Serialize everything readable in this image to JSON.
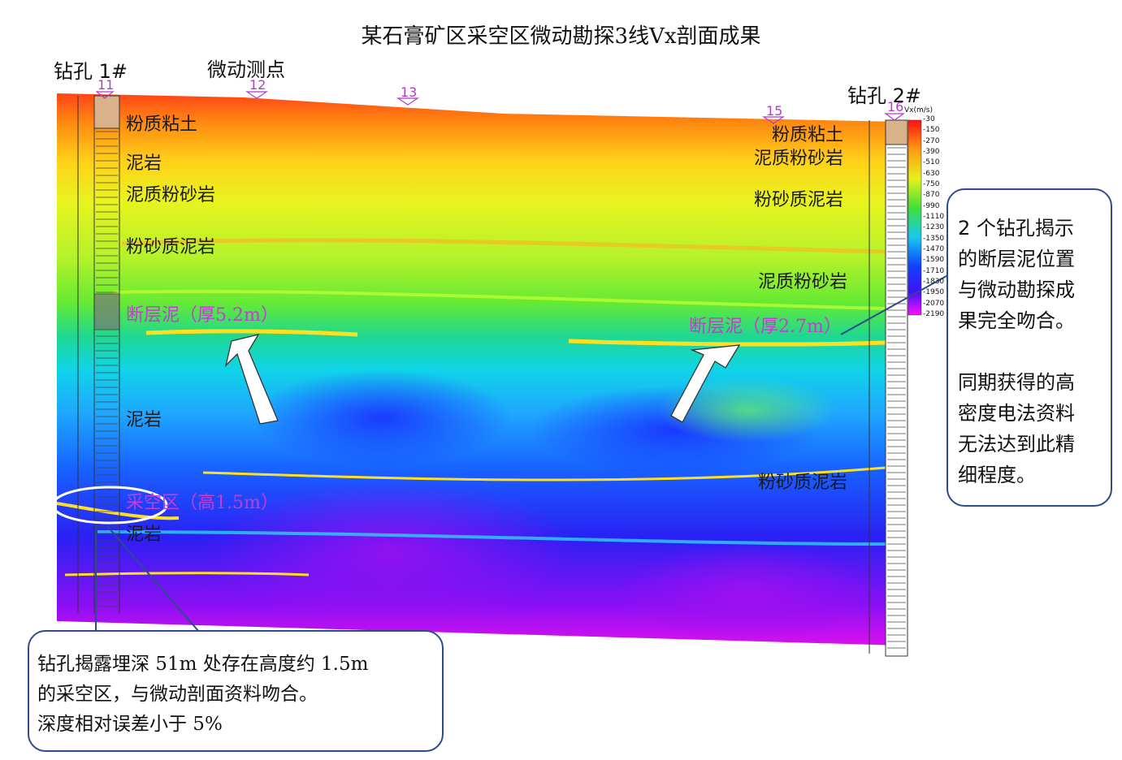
{
  "title": "某石膏矿区采空区微动勘探3线Vx剖面成果",
  "annotation_points_label": "微动测点",
  "boreholes": [
    {
      "name": "钻孔 1#"
    },
    {
      "name": "钻孔 2#"
    }
  ],
  "points": [
    "11",
    "12",
    "13",
    "15",
    "16"
  ],
  "legend": {
    "unit": "Vx(m/s)",
    "ticks": [
      "30",
      "150",
      "270",
      "390",
      "510",
      "630",
      "750",
      "870",
      "990",
      "1110",
      "1230",
      "1350",
      "1470",
      "1590",
      "1710",
      "1830",
      "1950",
      "2070",
      "2190"
    ]
  },
  "layers_left": [
    {
      "label": "粉质粘土",
      "style": "normal"
    },
    {
      "label": "泥岩",
      "style": "normal"
    },
    {
      "label": "泥质粉砂岩",
      "style": "normal"
    },
    {
      "label": "粉砂质泥岩",
      "style": "normal"
    },
    {
      "label": "断层泥（厚5.2m）",
      "style": "magenta"
    },
    {
      "label": "泥岩",
      "style": "normal"
    },
    {
      "label": "采空区（高1.5m）",
      "style": "magenta"
    },
    {
      "label": "泥岩",
      "style": "normal"
    }
  ],
  "layers_right": [
    {
      "label": "粉质粘土",
      "style": "normal"
    },
    {
      "label": "泥质粉砂岩",
      "style": "normal"
    },
    {
      "label": "粉砂质泥岩",
      "style": "normal"
    },
    {
      "label": "泥质粉砂岩",
      "style": "normal"
    },
    {
      "label": "断层泥（厚2.7m）",
      "style": "magenta"
    },
    {
      "label": "粉砂质泥岩",
      "style": "normal"
    }
  ],
  "callout_right": {
    "para1": [
      "2 个钻孔揭示",
      "的断层泥位置",
      "与微动勘探成",
      "果完全吻合。"
    ],
    "para2": [
      "同期获得的高",
      "密度电法资料",
      "无法达到此精",
      "细程度。"
    ]
  },
  "callout_bottom": {
    "lines": [
      "钻孔揭露埋深 51m 处存在高度约 1.5m",
      "的采空区，与微动剖面资料吻合。",
      "深度相对误差小于 5%"
    ]
  }
}
